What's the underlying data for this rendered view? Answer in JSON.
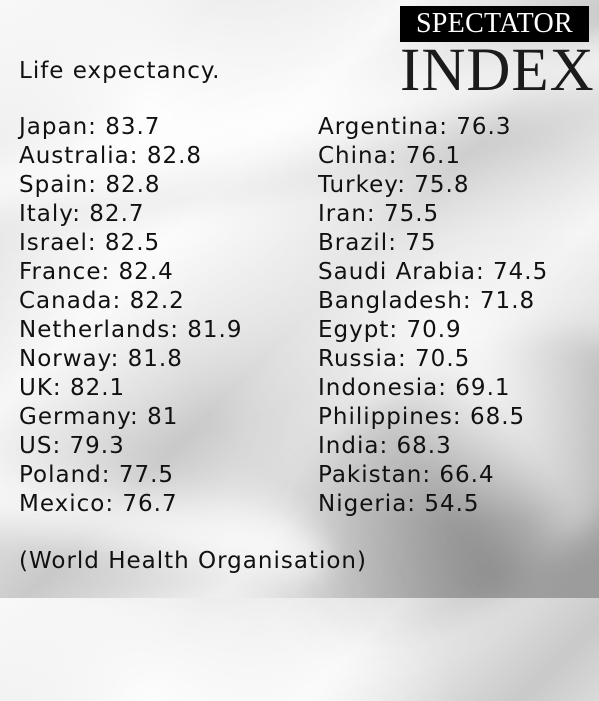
{
  "brand": {
    "top": "SPECTATOR",
    "bottom": "INDEX"
  },
  "title": "Life expectancy.",
  "left_column": [
    {
      "country": "Japan",
      "value": "83.7"
    },
    {
      "country": "Australia",
      "value": "82.8"
    },
    {
      "country": "Spain",
      "value": "82.8"
    },
    {
      "country": "Italy",
      "value": "82.7"
    },
    {
      "country": "Israel",
      "value": "82.5"
    },
    {
      "country": "France",
      "value": "82.4"
    },
    {
      "country": "Canada",
      "value": "82.2"
    },
    {
      "country": "Netherlands",
      "value": "81.9"
    },
    {
      "country": "Norway",
      "value": "81.8"
    },
    {
      "country": "UK",
      "value": "82.1"
    },
    {
      "country": "Germany",
      "value": "81"
    },
    {
      "country": "US",
      "value": "79.3"
    },
    {
      "country": "Poland",
      "value": "77.5"
    },
    {
      "country": "Mexico",
      "value": "76.7"
    }
  ],
  "right_column": [
    {
      "country": "Argentina",
      "value": "76.3"
    },
    {
      "country": "China",
      "value": "76.1"
    },
    {
      "country": "Turkey",
      "value": "75.8"
    },
    {
      "country": "Iran",
      "value": "75.5"
    },
    {
      "country": "Brazil",
      "value": "75"
    },
    {
      "country": "Saudi Arabia",
      "value": "74.5"
    },
    {
      "country": "Bangladesh",
      "value": "71.8"
    },
    {
      "country": "Egypt",
      "value": "70.9"
    },
    {
      "country": "Russia",
      "value": "70.5"
    },
    {
      "country": "Indonesia",
      "value": "69.1"
    },
    {
      "country": "Philippines",
      "value": "68.5"
    },
    {
      "country": "India",
      "value": "68.3"
    },
    {
      "country": "Pakistan",
      "value": "66.4"
    },
    {
      "country": "Nigeria",
      "value": "54.5"
    }
  ],
  "source": "(World Health Organisation)"
}
